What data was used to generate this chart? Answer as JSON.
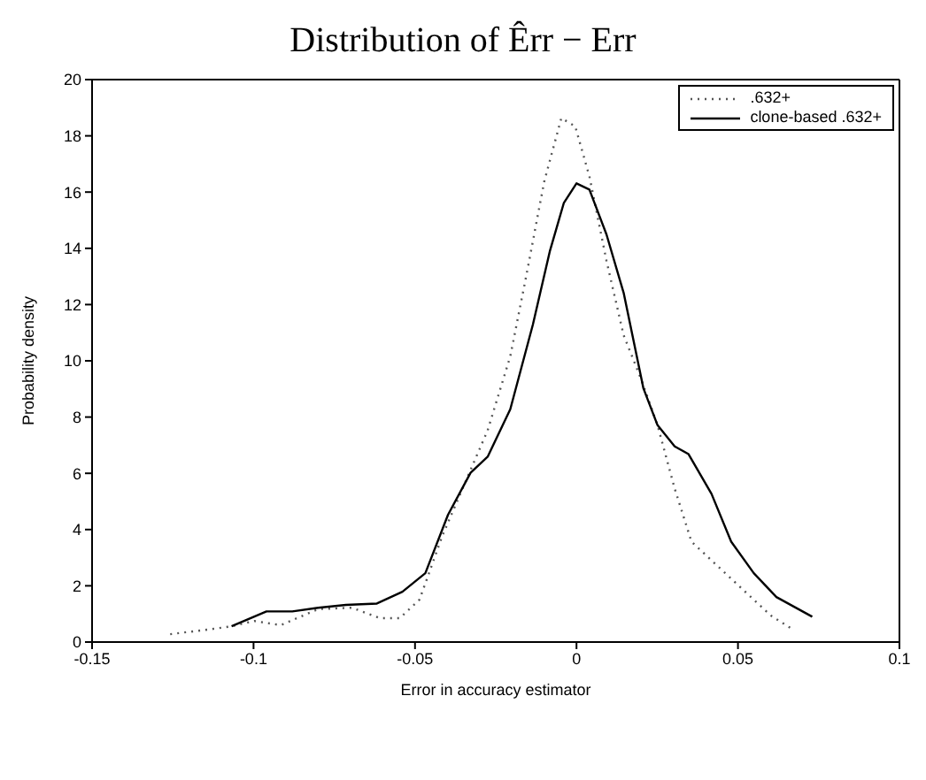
{
  "chart_data": {
    "type": "line",
    "title": "Distribution of Êrr − Err",
    "xlabel": "Error in accuracy estimator",
    "ylabel": "Probability density",
    "xlim": [
      -0.15,
      0.1
    ],
    "xticks": [
      -0.15,
      -0.1,
      -0.05,
      0,
      0.05,
      0.1
    ],
    "ylim": [
      0,
      20
    ],
    "yticks": [
      0,
      2,
      4,
      6,
      8,
      10,
      12,
      14,
      16,
      18,
      20
    ],
    "grid": false,
    "legend": "top right",
    "marker": "none",
    "series": [
      {
        "name": ".632+",
        "color": "#555555",
        "line_style": "dotted",
        "x": [
          -0.1258,
          -0.115,
          -0.1068,
          -0.0998,
          -0.0916,
          -0.08,
          -0.0695,
          -0.0609,
          -0.0547,
          -0.0486,
          -0.0416,
          -0.0346,
          -0.0275,
          -0.0205,
          -0.0153,
          -0.01,
          -0.0047,
          -0.0004,
          0.004,
          0.0093,
          0.0146,
          0.0198,
          0.0251,
          0.0304,
          0.0356,
          0.0426,
          0.0496,
          0.0602,
          0.0672
        ],
        "values": [
          0.28,
          0.43,
          0.56,
          0.75,
          0.6,
          1.17,
          1.22,
          0.85,
          0.85,
          1.51,
          3.76,
          5.64,
          7.53,
          10.16,
          13.17,
          16.37,
          18.63,
          18.34,
          16.56,
          13.55,
          10.91,
          9.41,
          7.71,
          5.46,
          3.57,
          2.82,
          2.07,
          0.94,
          0.43
        ]
      },
      {
        "name": "clone-based .632+",
        "color": "#000000",
        "line_style": "solid",
        "x": [
          -0.1068,
          -0.096,
          -0.088,
          -0.08,
          -0.0714,
          -0.0618,
          -0.0539,
          -0.0468,
          -0.0398,
          -0.0328,
          -0.0275,
          -0.0205,
          -0.0135,
          -0.0082,
          -0.0039,
          0,
          0.004,
          0.0093,
          0.0146,
          0.0207,
          0.0251,
          0.0304,
          0.0347,
          0.0418,
          0.0479,
          0.0549,
          0.0619,
          0.073
        ],
        "values": [
          0.56,
          1.09,
          1.09,
          1.22,
          1.32,
          1.37,
          1.79,
          2.45,
          4.52,
          6.02,
          6.59,
          8.28,
          11.29,
          13.92,
          15.62,
          16.31,
          16.09,
          14.49,
          12.42,
          9.03,
          7.71,
          6.96,
          6.68,
          5.27,
          3.57,
          2.45,
          1.6,
          0.9
        ]
      }
    ]
  }
}
